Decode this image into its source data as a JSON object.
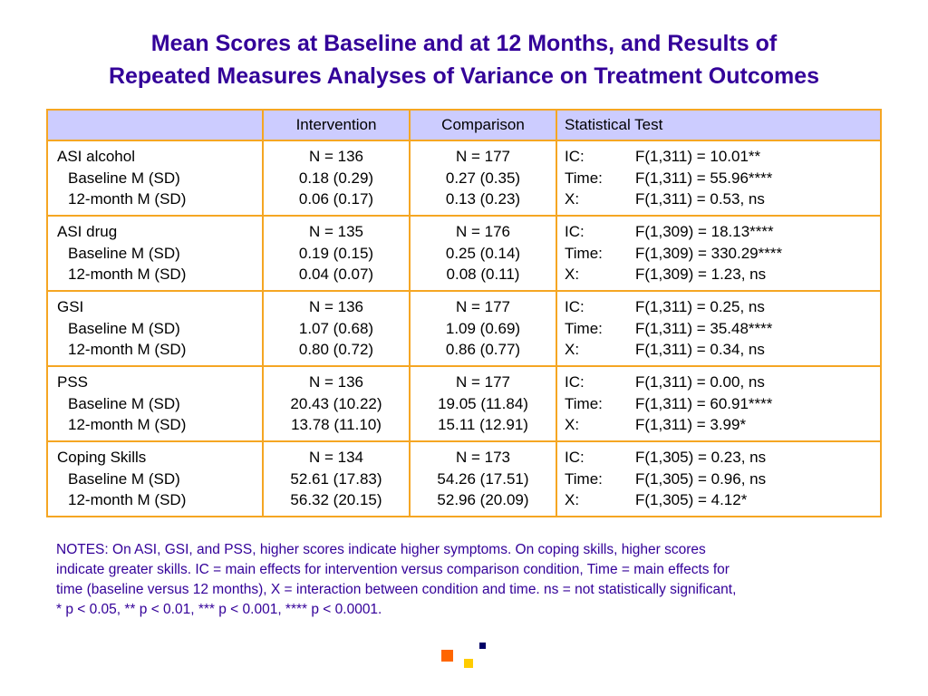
{
  "title": {
    "line1": "Mean Scores at Baseline and at 12 Months, and Results of",
    "line2": "Repeated Measures Analyses of Variance on Treatment Outcomes"
  },
  "table": {
    "headers": [
      "",
      "Intervention",
      "Comparison",
      "Statistical Test"
    ],
    "rows": [
      {
        "labels": [
          "ASI alcohol",
          "Baseline M (SD)",
          "12-month M (SD)"
        ],
        "intervention": [
          "N = 136",
          "0.18 (0.29)",
          "0.06 (0.17)"
        ],
        "comparison": [
          "N = 177",
          "0.27 (0.35)",
          "0.13 (0.23)"
        ],
        "stats": [
          {
            "key": "IC:",
            "value": "F(1,311) = 10.01**"
          },
          {
            "key": "Time:",
            "value": "F(1,311) = 55.96****"
          },
          {
            "key": "X:",
            "value": "F(1,311) = 0.53, ns"
          }
        ]
      },
      {
        "labels": [
          "ASI drug",
          "Baseline M (SD)",
          "12-month M (SD)"
        ],
        "intervention": [
          "N = 135",
          "0.19 (0.15)",
          "0.04 (0.07)"
        ],
        "comparison": [
          "N = 176",
          "0.25 (0.14)",
          "0.08 (0.11)"
        ],
        "stats": [
          {
            "key": "IC:",
            "value": "F(1,309) = 18.13****"
          },
          {
            "key": "Time:",
            "value": "F(1,309) = 330.29****"
          },
          {
            "key": "X:",
            "value": "F(1,309) = 1.23, ns"
          }
        ]
      },
      {
        "labels": [
          "GSI",
          "Baseline M (SD)",
          "12-month M (SD)"
        ],
        "intervention": [
          "N = 136",
          "1.07 (0.68)",
          "0.80 (0.72)"
        ],
        "comparison": [
          "N = 177",
          "1.09 (0.69)",
          "0.86 (0.77)"
        ],
        "stats": [
          {
            "key": "IC:",
            "value": "F(1,311) = 0.25, ns"
          },
          {
            "key": "Time:",
            "value": "F(1,311) = 35.48****"
          },
          {
            "key": "X:",
            "value": "F(1,311) = 0.34, ns"
          }
        ]
      },
      {
        "labels": [
          "PSS",
          "Baseline M (SD)",
          "12-month M (SD)"
        ],
        "intervention": [
          "N = 136",
          "20.43 (10.22)",
          "13.78 (11.10)"
        ],
        "comparison": [
          "N = 177",
          "19.05 (11.84)",
          "15.11 (12.91)"
        ],
        "stats": [
          {
            "key": "IC:",
            "value": "F(1,311) = 0.00, ns"
          },
          {
            "key": "Time:",
            "value": "F(1,311) = 60.91****"
          },
          {
            "key": "X:",
            "value": "F(1,311) = 3.99*"
          }
        ]
      },
      {
        "labels": [
          "Coping Skills",
          "Baseline M (SD)",
          "12-month M (SD)"
        ],
        "intervention": [
          "N = 134",
          "52.61 (17.83)",
          "56.32 (20.15)"
        ],
        "comparison": [
          "N = 173",
          "54.26 (17.51)",
          "52.96 (20.09)"
        ],
        "stats": [
          {
            "key": "IC:",
            "value": "F(1,305) = 0.23, ns"
          },
          {
            "key": "Time:",
            "value": "F(1,305) = 0.96, ns"
          },
          {
            "key": "X:",
            "value": "F(1,305) = 4.12*"
          }
        ]
      }
    ]
  },
  "notes": [
    "NOTES: On ASI, GSI, and PSS, higher scores indicate higher symptoms. On coping skills, higher scores",
    "indicate greater skills. IC = main effects for intervention versus comparison condition, Time = main effects for",
    "time (baseline versus 12 months), X = interaction between condition and time. ns = not statistically significant,",
    "* p < 0.05, ** p < 0.01, *** p < 0.001, **** p < 0.0001."
  ],
  "colors": {
    "title": "#330099",
    "border": "#f5a623",
    "header_bg": "#ccccff",
    "logo_orange": "#ff6600",
    "logo_yellow": "#ffcc00",
    "logo_navy": "#000066"
  }
}
